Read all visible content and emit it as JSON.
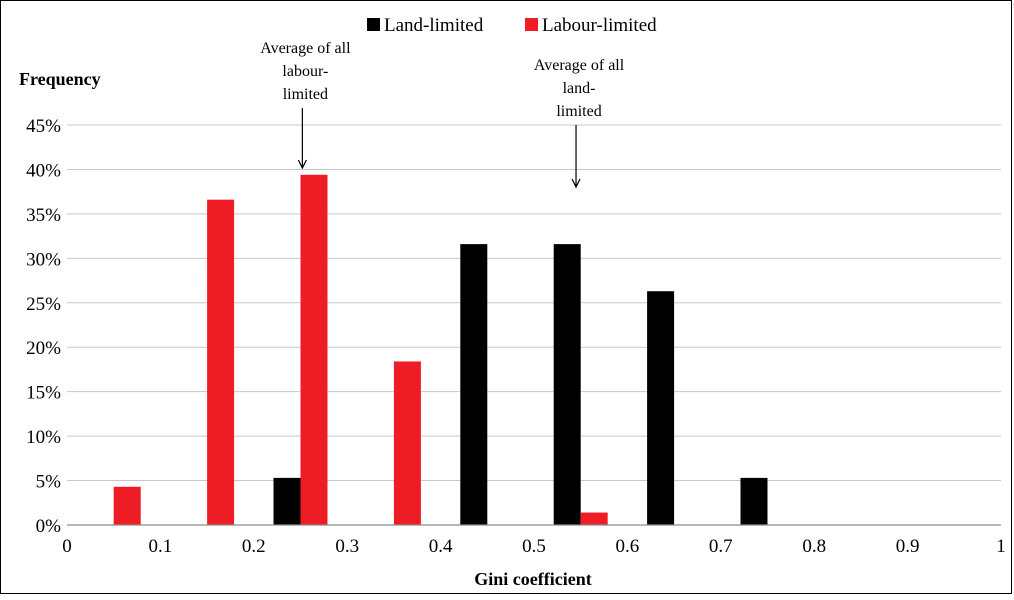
{
  "chart_data": {
    "type": "bar",
    "ylabel": "Frequency",
    "xlabel": "Gini coefficient",
    "yticks": [
      "0%",
      "5%",
      "10%",
      "15%",
      "20%",
      "25%",
      "30%",
      "35%",
      "40%",
      "45%"
    ],
    "xticks": [
      "0",
      "0.1",
      "0.2",
      "0.3",
      "0.4",
      "0.5",
      "0.6",
      "0.7",
      "0.8",
      "0.9",
      "1"
    ],
    "ylim": [
      0,
      45
    ],
    "xlim": [
      0,
      1
    ],
    "grid": true,
    "legend_position": "top-center",
    "bin_centers": [
      0.05,
      0.15,
      0.25,
      0.35,
      0.45,
      0.55,
      0.65,
      0.75,
      0.85,
      0.95
    ],
    "series": [
      {
        "name": "Land-limited",
        "color": "#000000",
        "values": [
          0,
          0,
          5.3,
          0,
          31.6,
          31.6,
          26.3,
          5.3,
          0,
          0
        ]
      },
      {
        "name": "Labour-limited",
        "color": "#ee1c24",
        "values": [
          4.3,
          36.6,
          39.4,
          18.4,
          0,
          1.4,
          0,
          0,
          0,
          0
        ]
      }
    ],
    "annotations": [
      {
        "lines": [
          "Average of all",
          "labour-",
          "limited"
        ],
        "x": 0.252,
        "arrow_tip_y": 40.0
      },
      {
        "lines": [
          "Average of all",
          "land-",
          "limited"
        ],
        "x": 0.545,
        "arrow_tip_y": 38.0
      }
    ]
  }
}
